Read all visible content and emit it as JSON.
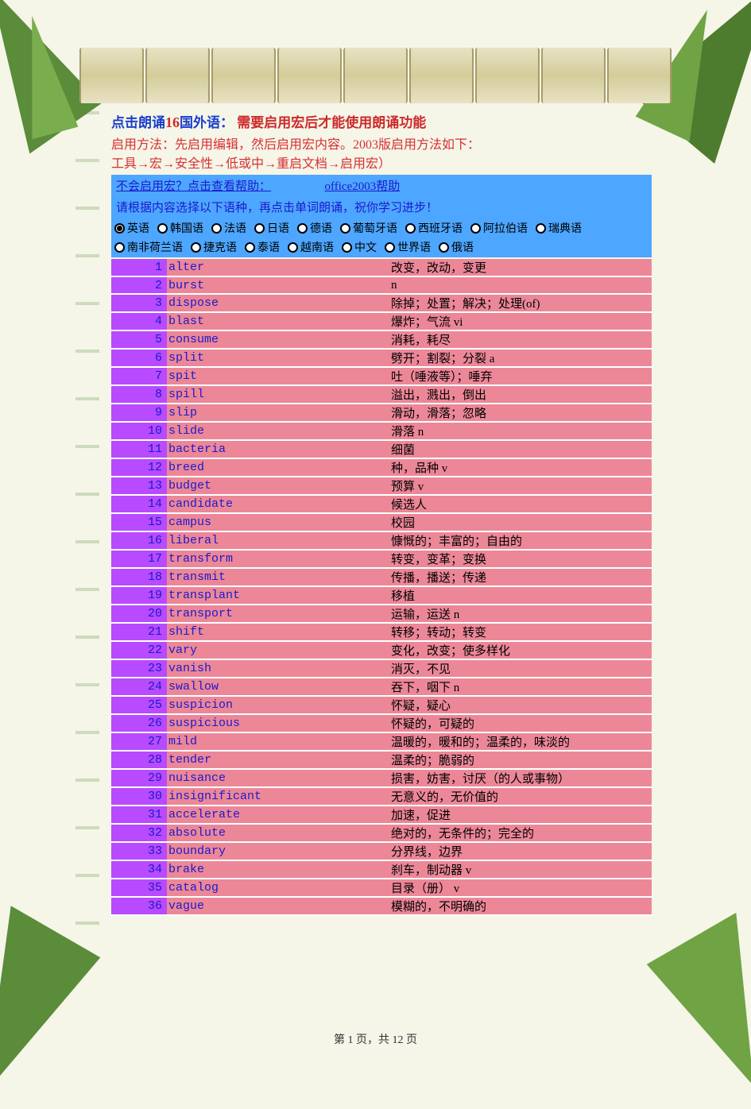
{
  "header": {
    "title_prefix": "点击朗诵",
    "title_num": "16",
    "title_suffix": "国外语：",
    "title_warn": "需要启用宏后才能使用朗诵功能",
    "line2": "启用方法：先启用编辑，然后启用宏内容。2003版启用方法如下：",
    "line3": "工具→宏→安全性→低或中→重启文档→启用宏）"
  },
  "help": {
    "text": "不会启用宏？点击查看帮助：",
    "link": "office2003帮助"
  },
  "instruct": "请根据内容选择以下语种，再点击单词朗诵，祝你学习进步！",
  "languages": [
    {
      "label": "英语",
      "checked": true
    },
    {
      "label": "韩国语",
      "checked": false
    },
    {
      "label": "法语",
      "checked": false
    },
    {
      "label": "日语",
      "checked": false
    },
    {
      "label": "德语",
      "checked": false
    },
    {
      "label": "葡萄牙语",
      "checked": false
    },
    {
      "label": "西班牙语",
      "checked": false
    },
    {
      "label": "阿拉伯语",
      "checked": false
    },
    {
      "label": "瑞典语",
      "checked": false
    },
    {
      "label": "南非荷兰语",
      "checked": false
    },
    {
      "label": "捷克语",
      "checked": false
    },
    {
      "label": "泰语",
      "checked": false
    },
    {
      "label": "越南语",
      "checked": false
    },
    {
      "label": "中文",
      "checked": false
    },
    {
      "label": "世界语",
      "checked": false
    },
    {
      "label": "俄语",
      "checked": false
    }
  ],
  "colors": {
    "row_num_bg": "#b84aff",
    "row_body_bg": "#ec8798",
    "row_border": "#ffffff"
  },
  "vocab": [
    {
      "n": 1,
      "w": "alter",
      "d": "改变，改动，变更"
    },
    {
      "n": 2,
      "w": "burst",
      "d": "n"
    },
    {
      "n": 3,
      "w": "dispose",
      "d": "除掉；处置；解决；处理(of)"
    },
    {
      "n": 4,
      "w": "blast",
      "d": "爆炸；气流 vi"
    },
    {
      "n": 5,
      "w": "consume",
      "d": "消耗，耗尽"
    },
    {
      "n": 6,
      "w": "split",
      "d": "劈开；割裂；分裂 a"
    },
    {
      "n": 7,
      "w": "spit",
      "d": "吐（唾液等）；唾弃"
    },
    {
      "n": 8,
      "w": "spill",
      "d": "溢出，溅出，倒出"
    },
    {
      "n": 9,
      "w": "slip",
      "d": "滑动，滑落；忽略"
    },
    {
      "n": 10,
      "w": "slide",
      "d": "滑落 n"
    },
    {
      "n": 11,
      "w": "bacteria",
      "d": "细菌"
    },
    {
      "n": 12,
      "w": "breed",
      "d": "种，品种 v"
    },
    {
      "n": 13,
      "w": "budget",
      "d": "预算 v"
    },
    {
      "n": 14,
      "w": "candidate",
      "d": "候选人"
    },
    {
      "n": 15,
      "w": "campus",
      "d": "校园"
    },
    {
      "n": 16,
      "w": "liberal",
      "d": "慷慨的；丰富的；自由的"
    },
    {
      "n": 17,
      "w": "transform",
      "d": "转变，变革；变换"
    },
    {
      "n": 18,
      "w": "transmit",
      "d": "传播，播送；传递"
    },
    {
      "n": 19,
      "w": "transplant",
      "d": "移植"
    },
    {
      "n": 20,
      "w": "transport",
      "d": "运输，运送 n"
    },
    {
      "n": 21,
      "w": "shift",
      "d": "转移；转动；转变"
    },
    {
      "n": 22,
      "w": "vary",
      "d": "变化，改变；使多样化"
    },
    {
      "n": 23,
      "w": "vanish",
      "d": "消灭，不见"
    },
    {
      "n": 24,
      "w": "swallow",
      "d": "吞下，咽下 n"
    },
    {
      "n": 25,
      "w": "suspicion",
      "d": "怀疑，疑心"
    },
    {
      "n": 26,
      "w": "suspicious",
      "d": "怀疑的，可疑的"
    },
    {
      "n": 27,
      "w": "mild",
      "d": "温暖的，暖和的；温柔的，味淡的"
    },
    {
      "n": 28,
      "w": "tender",
      "d": "温柔的；脆弱的"
    },
    {
      "n": 29,
      "w": "nuisance",
      "d": "损害，妨害，讨厌（的人或事物）"
    },
    {
      "n": 30,
      "w": "insignificant",
      "d": "无意义的，无价值的"
    },
    {
      "n": 31,
      "w": "accelerate",
      "d": "加速，促进"
    },
    {
      "n": 32,
      "w": "absolute",
      "d": "绝对的，无条件的；完全的"
    },
    {
      "n": 33,
      "w": "boundary",
      "d": "分界线，边界"
    },
    {
      "n": 34,
      "w": "brake",
      "d": "刹车，制动器 v"
    },
    {
      "n": 35,
      "w": "catalog",
      "d": "目录（册） v"
    },
    {
      "n": 36,
      "w": "vague",
      "d": "模糊的，不明确的"
    }
  ],
  "pager": {
    "prefix": "第",
    "current": "1",
    "mid": "页，共",
    "total": "12",
    "suffix": "页"
  }
}
